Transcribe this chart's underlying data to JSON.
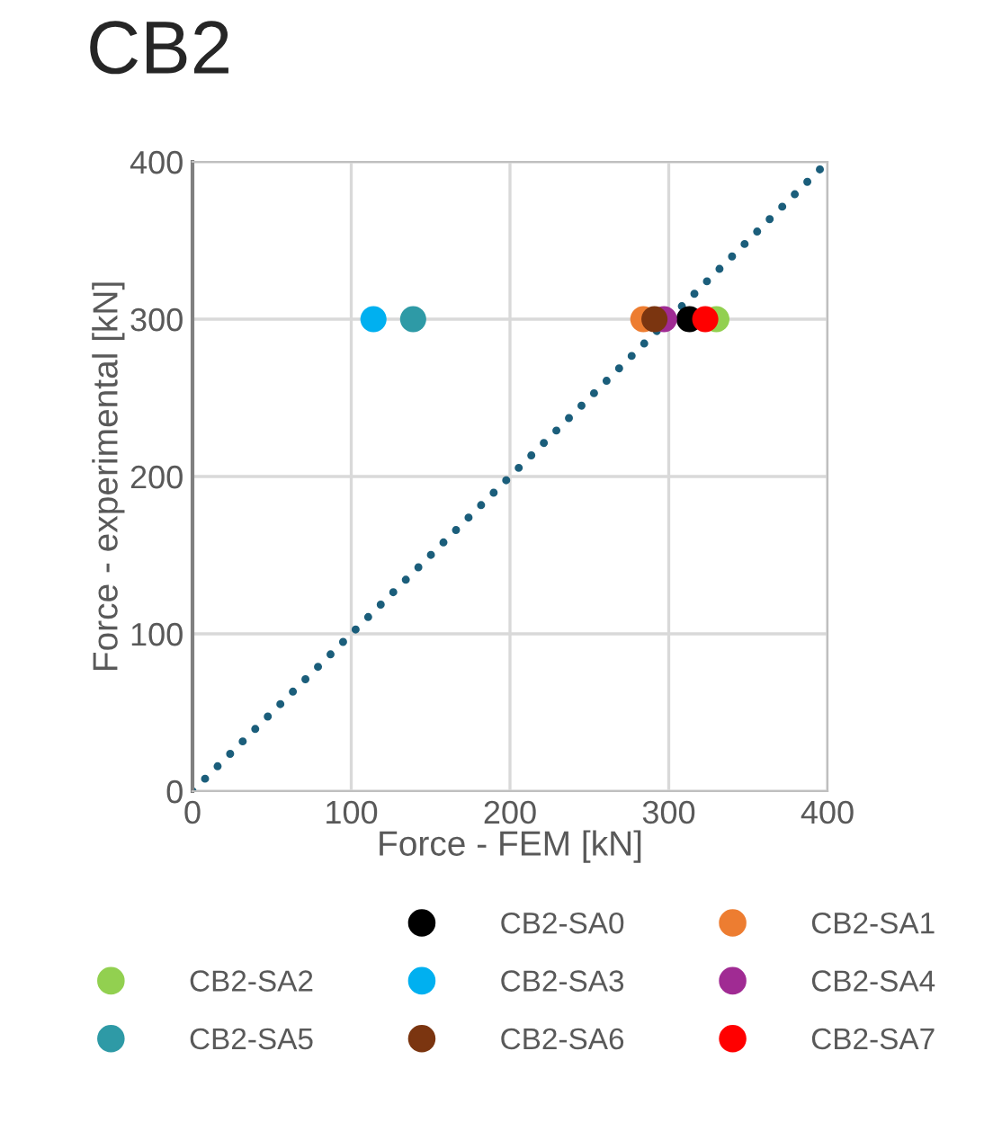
{
  "chart_data": {
    "type": "scatter",
    "title": "CB2",
    "xlabel": "Force - FEM [kN]",
    "ylabel": "Force - experimental [kN]",
    "xlim": [
      0,
      400
    ],
    "ylim": [
      0,
      400
    ],
    "xticks": [
      0,
      100,
      200,
      300,
      400
    ],
    "yticks": [
      0,
      100,
      200,
      300,
      400
    ],
    "grid": true,
    "legend": "bottom",
    "marker": "circle",
    "series": [
      {
        "name": "CB2-SA0",
        "color": "#000000",
        "x": [
          313
        ],
        "values": [
          300
        ]
      },
      {
        "name": "CB2-SA1",
        "color": "#ed7d31",
        "x": [
          284
        ],
        "values": [
          300
        ]
      },
      {
        "name": "CB2-SA2",
        "color": "#92d050",
        "x": [
          330
        ],
        "values": [
          300
        ]
      },
      {
        "name": "CB2-SA3",
        "color": "#00b0f0",
        "x": [
          114
        ],
        "values": [
          300
        ]
      },
      {
        "name": "CB2-SA4",
        "color": "#a02b93",
        "x": [
          297
        ],
        "values": [
          300
        ]
      },
      {
        "name": "CB2-SA5",
        "color": "#2e9aa6",
        "x": [
          139
        ],
        "values": [
          300
        ]
      },
      {
        "name": "CB2-SA6",
        "color": "#7b3510",
        "x": [
          291
        ],
        "values": [
          300
        ]
      },
      {
        "name": "CB2-SA7",
        "color": "#ff0000",
        "x": [
          323
        ],
        "values": [
          300
        ]
      },
      {
        "type": "line",
        "color": "#1b5e7b",
        "line_style": "dotted",
        "marker": "none",
        "x": [
          0,
          400
        ],
        "values": [
          0,
          400
        ]
      }
    ]
  }
}
